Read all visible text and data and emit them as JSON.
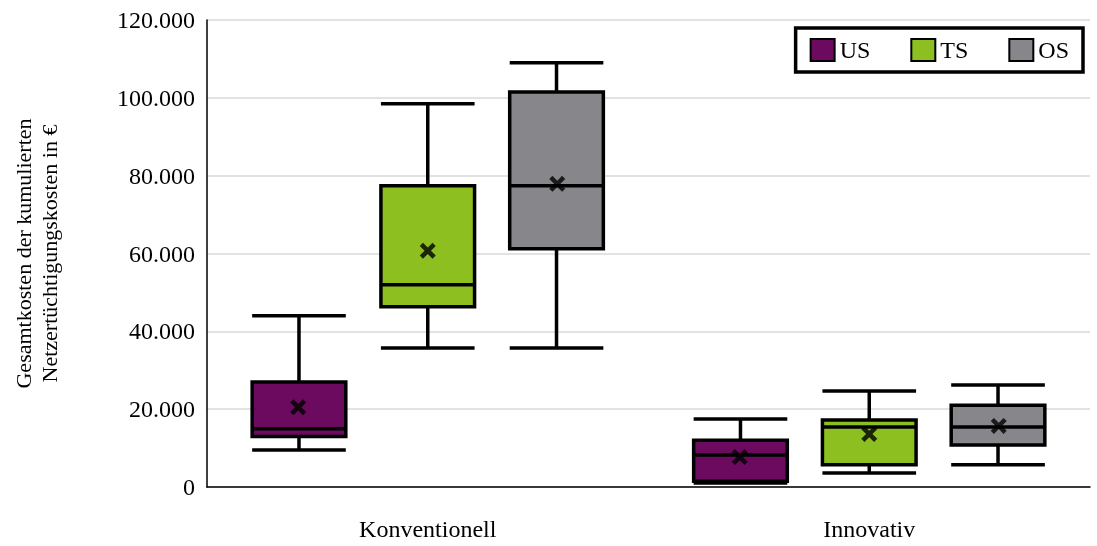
{
  "chart_data": {
    "type": "box",
    "ylabel": "Gesamtkosten der kumulierten\nNetzertüchtigungskosten in €",
    "categories": [
      "Konventionell",
      "Innovativ"
    ],
    "series": [
      {
        "name": "US",
        "color": "#6b0a5f",
        "boxes": [
          {
            "low": 9500,
            "q1": 13000,
            "median": 15000,
            "q3": 27000,
            "high": 44000,
            "mean": 20500
          },
          {
            "low": 1000,
            "q1": 1500,
            "median": 8200,
            "q3": 12000,
            "high": 17500,
            "mean": 7700
          }
        ]
      },
      {
        "name": "TS",
        "color": "#8cbf1f",
        "boxes": [
          {
            "low": 35700,
            "q1": 46300,
            "median": 52000,
            "q3": 77400,
            "high": 98500,
            "mean": 60700
          },
          {
            "low": 3600,
            "q1": 5700,
            "median": 15400,
            "q3": 17200,
            "high": 24700,
            "mean": 13600
          }
        ]
      },
      {
        "name": "OS",
        "color": "#86868b",
        "boxes": [
          {
            "low": 35700,
            "q1": 61200,
            "median": 77400,
            "q3": 101500,
            "high": 109000,
            "mean": 77900
          },
          {
            "low": 5700,
            "q1": 10800,
            "median": 15400,
            "q3": 21000,
            "high": 26200,
            "mean": 15700
          }
        ]
      }
    ],
    "ylim": [
      0,
      120000
    ],
    "yticks": [
      {
        "value": 0,
        "label": "0"
      },
      {
        "value": 20000,
        "label": "20.000"
      },
      {
        "value": 40000,
        "label": "40.000"
      },
      {
        "value": 60000,
        "label": "60.000"
      },
      {
        "value": 80000,
        "label": "80.000"
      },
      {
        "value": 100000,
        "label": "100.000"
      },
      {
        "value": 120000,
        "label": "120.000"
      }
    ],
    "grid": "y",
    "legend": "top right"
  }
}
